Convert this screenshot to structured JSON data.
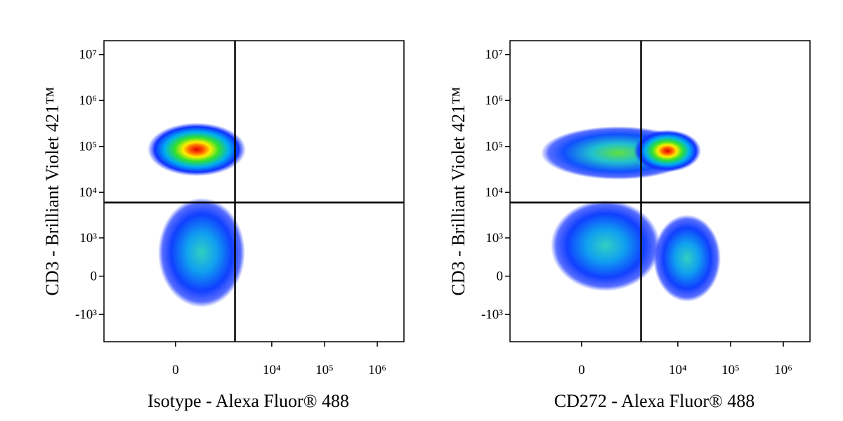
{
  "chart_data": [
    {
      "type": "density",
      "x_label": "Isotype - Alexa Fluor® 488",
      "y_label": "CD3 - Brilliant Violet 421™",
      "xscale": "biexponential",
      "yscale": "biexponential",
      "xlim": [
        -3400,
        3200000
      ],
      "ylim": [
        -4000,
        20000000
      ],
      "xticks": [
        0,
        {
          "value": 10000,
          "label": "10⁴"
        },
        {
          "value": 100000,
          "label": "10⁵"
        },
        {
          "value": 1000000,
          "label": "10⁶"
        }
      ],
      "yticks": [
        {
          "value": -1000,
          "label": "-10³"
        },
        0,
        {
          "value": 1000,
          "label": "10³"
        },
        {
          "value": 10000,
          "label": "10⁴"
        },
        {
          "value": 100000,
          "label": "10⁵"
        },
        {
          "value": 1000000,
          "label": "10⁶"
        },
        {
          "value": 10000000,
          "label": "10⁷"
        }
      ],
      "gates": {
        "x": 2000,
        "y": 6000
      }
    },
    {
      "type": "density",
      "x_label": "CD272 - Alexa Fluor® 488",
      "y_label": "CD3 - Brilliant Violet 421™",
      "xscale": "biexponential",
      "yscale": "biexponential",
      "xlim": [
        -3400,
        3200000
      ],
      "ylim": [
        -4000,
        20000000
      ],
      "xticks": [
        0,
        {
          "value": 10000,
          "label": "10⁴"
        },
        {
          "value": 100000,
          "label": "10⁵"
        },
        {
          "value": 1000000,
          "label": "10⁶"
        }
      ],
      "yticks": [
        {
          "value": -1000,
          "label": "-10³"
        },
        0,
        {
          "value": 1000,
          "label": "10³"
        },
        {
          "value": 10000,
          "label": "10⁴"
        },
        {
          "value": 100000,
          "label": "10⁵"
        },
        {
          "value": 1000000,
          "label": "10⁶"
        },
        {
          "value": 10000000,
          "label": "10⁷"
        }
      ],
      "gates": {
        "x": 2000,
        "y": 6000
      }
    }
  ]
}
